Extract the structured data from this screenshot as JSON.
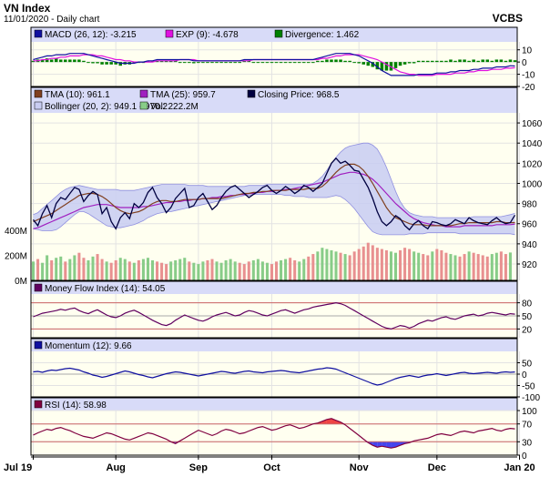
{
  "header": {
    "title": "VN Index",
    "subtitle": "11/01/2020 - Daily chart",
    "source": "VCBS"
  },
  "colors": {
    "panel_bg": "#fffff0",
    "legend_bg": "#d8dbf8",
    "grid": "#e3e3e3",
    "border": "#000000",
    "macd": "#1010a0",
    "exp": "#e010e0",
    "divergence": "#008000",
    "tma10": "#804020",
    "tma25": "#a020c0",
    "close": "#000040",
    "bollinger_fill": "#c8ccf2",
    "bollinger_line": "#9090e0",
    "vol_up": "#88cc88",
    "vol_down": "#e89090",
    "mfi": "#600060",
    "momentum": "#1010a0",
    "rsi": "#800040",
    "ref_line": "#cc6666",
    "rsi_over": "#ee4444",
    "rsi_under": "#4444ee"
  },
  "x_labels": [
    "Jul 19",
    "Aug",
    "Sep",
    "Oct",
    "Nov",
    "Dec",
    "Jan 20"
  ],
  "panels": [
    {
      "id": "macd",
      "legend": [
        {
          "key": "macd",
          "text": "MACD (26, 12): -3.215"
        },
        {
          "key": "exp",
          "text": "EXP (9): -4.678"
        },
        {
          "key": "divergence",
          "text": "Divergence: 1.462"
        }
      ],
      "ticks": [
        10,
        0,
        -10,
        -20
      ],
      "range": [
        -20,
        15
      ]
    },
    {
      "id": "price",
      "legend": [
        {
          "key": "tma10",
          "text": "TMA (10): 961.1"
        },
        {
          "key": "tma25",
          "text": "TMA (25): 959.7"
        },
        {
          "key": "close",
          "text": "Closing Price: 968.5"
        },
        {
          "key": "bollinger",
          "text": "Bollinger (20, 2): 949.1 - 970.2"
        },
        {
          "key": "vol",
          "text": "Vol: 222.2M"
        }
      ],
      "ticks": [
        1060,
        1040,
        1020,
        1000,
        980,
        960,
        940,
        920
      ],
      "range": [
        920,
        1070
      ],
      "vol_ticks": [
        "400M",
        "200M",
        "0M"
      ]
    },
    {
      "id": "mfi",
      "legend": [
        {
          "key": "mfi",
          "text": "Money Flow Index (14): 54.05"
        }
      ],
      "ticks": [
        80,
        50,
        20
      ],
      "range": [
        0,
        100
      ]
    },
    {
      "id": "momentum",
      "legend": [
        {
          "key": "momentum",
          "text": "Momentum (12): 9.66"
        }
      ],
      "ticks": [
        50,
        0,
        -50,
        -100
      ],
      "range": [
        -100,
        100
      ]
    },
    {
      "id": "rsi",
      "legend": [
        {
          "key": "rsi",
          "text": "RSI (14): 58.98"
        }
      ],
      "ticks": [
        100,
        70,
        30,
        0
      ],
      "range": [
        0,
        100
      ]
    }
  ],
  "chart_data": {
    "type": "line",
    "title": "VN Index",
    "subtitle": "11/01/2020 - Daily chart",
    "x": [
      "Jul 19",
      "Aug",
      "Sep",
      "Oct",
      "Nov",
      "Dec",
      "Jan 20"
    ],
    "x_index": [
      0,
      18,
      36,
      52,
      71,
      88,
      106
    ],
    "price": {
      "close": [
        964,
        958,
        970,
        978,
        966,
        980,
        986,
        984,
        990,
        996,
        994,
        982,
        988,
        992,
        989,
        970,
        976,
        962,
        955,
        966,
        971,
        965,
        980,
        976,
        981,
        991,
        996,
        986,
        980,
        971,
        976,
        985,
        990,
        995,
        976,
        978,
        986,
        990,
        982,
        974,
        978,
        986,
        992,
        996,
        998,
        994,
        990,
        986,
        989,
        992,
        996,
        998,
        993,
        990,
        993,
        997,
        994,
        990,
        993,
        998,
        996,
        992,
        996,
        1000,
        1010,
        1020,
        1025,
        1020,
        1022,
        1018,
        1013,
        1012,
        1004,
        996,
        985,
        972,
        962,
        958,
        962,
        968,
        965,
        958,
        954,
        960,
        963,
        958,
        955,
        962,
        961,
        959,
        958,
        960,
        964,
        962,
        960,
        966,
        963,
        961,
        960,
        959,
        963,
        966,
        962,
        960,
        961,
        968.5
      ],
      "tma10": [
        962,
        964,
        966,
        968,
        970,
        973,
        976,
        979,
        982,
        985,
        988,
        989,
        990,
        990,
        989,
        987,
        984,
        980,
        976,
        973,
        971,
        970,
        971,
        972,
        974,
        977,
        980,
        982,
        983,
        983,
        982,
        982,
        983,
        984,
        984,
        984,
        984,
        985,
        985,
        985,
        985,
        985,
        986,
        987,
        988,
        989,
        990,
        990,
        991,
        991,
        992,
        992,
        993,
        993,
        993,
        993,
        994,
        994,
        994,
        994,
        995,
        995,
        995,
        997,
        1001,
        1006,
        1011,
        1015,
        1018,
        1019,
        1019,
        1017,
        1013,
        1007,
        1000,
        992,
        984,
        976,
        970,
        966,
        964,
        962,
        960,
        959,
        959,
        959,
        958,
        958,
        958,
        958,
        958,
        958,
        959,
        960,
        960,
        961,
        961,
        961,
        961,
        961,
        961,
        962,
        962,
        961,
        961,
        961.1
      ],
      "tma25": [
        955,
        956,
        958,
        960,
        962,
        964,
        966,
        968,
        970,
        972,
        974,
        976,
        977,
        978,
        979,
        979,
        979,
        978,
        977,
        976,
        976,
        976,
        976,
        976,
        977,
        977,
        978,
        979,
        980,
        981,
        981,
        982,
        982,
        983,
        983,
        984,
        984,
        985,
        985,
        986,
        986,
        987,
        987,
        988,
        988,
        989,
        989,
        990,
        990,
        991,
        991,
        992,
        992,
        993,
        993,
        994,
        994,
        995,
        996,
        997,
        998,
        999,
        1000,
        1001,
        1003,
        1005,
        1007,
        1009,
        1010,
        1011,
        1011,
        1010,
        1009,
        1007,
        1004,
        1000,
        995,
        990,
        985,
        980,
        976,
        972,
        968,
        965,
        963,
        961,
        960,
        959,
        958,
        958,
        957,
        957,
        957,
        957,
        958,
        958,
        958,
        958,
        958,
        958,
        958,
        959,
        959,
        959,
        959,
        959.7
      ],
      "boll_upper": [
        969,
        971,
        975,
        979,
        983,
        987,
        991,
        994,
        996,
        997,
        998,
        997,
        996,
        995,
        994,
        994,
        994,
        994,
        994,
        993,
        993,
        993,
        993,
        994,
        995,
        996,
        997,
        998,
        999,
        999,
        999,
        999,
        999,
        999,
        998,
        998,
        998,
        998,
        997,
        997,
        997,
        997,
        997,
        997,
        997,
        997,
        997,
        998,
        998,
        998,
        998,
        999,
        999,
        999,
        999,
        999,
        999,
        999,
        999,
        999,
        999,
        1000,
        1003,
        1007,
        1013,
        1020,
        1026,
        1031,
        1035,
        1037,
        1038,
        1039,
        1040,
        1040,
        1038,
        1034,
        1026,
        1016,
        1004,
        992,
        982,
        975,
        971,
        969,
        968,
        967,
        967,
        967,
        966,
        966,
        966,
        966,
        966,
        966,
        966,
        966,
        967,
        967,
        967,
        967,
        967,
        967,
        967,
        968,
        969,
        970.2
      ],
      "boll_lower": [
        955,
        954,
        953,
        953,
        953,
        954,
        957,
        961,
        965,
        969,
        972,
        972,
        970,
        967,
        964,
        961,
        958,
        957,
        956,
        956,
        957,
        958,
        959,
        961,
        963,
        966,
        968,
        970,
        971,
        972,
        972,
        973,
        974,
        975,
        976,
        977,
        978,
        979,
        980,
        981,
        982,
        983,
        984,
        985,
        986,
        987,
        988,
        988,
        989,
        989,
        989,
        989,
        989,
        989,
        989,
        988,
        988,
        987,
        987,
        987,
        986,
        986,
        986,
        986,
        986,
        987,
        988,
        987,
        984,
        980,
        975,
        969,
        963,
        957,
        952,
        950,
        949,
        949,
        949,
        949,
        949,
        949,
        950,
        950,
        950,
        950,
        951,
        951,
        951,
        951,
        951,
        951,
        951,
        950,
        950,
        950,
        950,
        950,
        950,
        950,
        950,
        950,
        950,
        950,
        950,
        949.1
      ],
      "volume_m": [
        150,
        170,
        140,
        200,
        160,
        180,
        190,
        150,
        170,
        200,
        220,
        180,
        160,
        190,
        210,
        170,
        150,
        140,
        160,
        180,
        170,
        150,
        140,
        160,
        170,
        180,
        160,
        150,
        140,
        130,
        150,
        160,
        170,
        180,
        150,
        140,
        130,
        150,
        160,
        170,
        150,
        140,
        160,
        170,
        150,
        140,
        130,
        150,
        160,
        170,
        150,
        140,
        130,
        150,
        160,
        170,
        180,
        160,
        150,
        170,
        190,
        210,
        230,
        260,
        250,
        240,
        230,
        220,
        210,
        200,
        230,
        250,
        270,
        300,
        280,
        260,
        250,
        240,
        230,
        220,
        240,
        260,
        250,
        230,
        220,
        210,
        200,
        230,
        250,
        240,
        220,
        210,
        200,
        190,
        210,
        230,
        220,
        210,
        200,
        190,
        210,
        220,
        230,
        210,
        222.2
      ]
    },
    "macd": [
      2,
      3,
      4,
      5,
      5,
      6,
      6,
      6,
      7,
      7,
      7,
      7,
      6,
      5,
      4,
      3,
      2,
      1,
      0,
      -1,
      -1,
      -1,
      -1,
      0,
      0,
      1,
      1,
      2,
      2,
      2,
      2,
      2,
      2,
      2,
      2,
      1,
      1,
      1,
      1,
      1,
      1,
      1,
      1,
      1,
      1,
      1,
      2,
      2,
      2,
      2,
      2,
      2,
      2,
      2,
      2,
      2,
      2,
      2,
      2,
      2,
      2,
      2,
      3,
      4,
      5,
      6,
      7,
      7,
      7,
      7,
      6,
      5,
      3,
      1,
      -1,
      -4,
      -7,
      -9,
      -11,
      -11,
      -11,
      -11,
      -11,
      -11,
      -10,
      -10,
      -10,
      -10,
      -9,
      -9,
      -9,
      -8,
      -8,
      -7,
      -7,
      -7,
      -6,
      -6,
      -5,
      -5,
      -5,
      -4,
      -4,
      -4,
      -3,
      -3.215
    ],
    "exp": [
      1,
      1,
      2,
      2,
      3,
      3,
      4,
      4,
      5,
      5,
      5,
      6,
      6,
      6,
      5,
      5,
      4,
      3,
      2,
      2,
      1,
      1,
      0,
      0,
      0,
      0,
      0,
      1,
      1,
      1,
      1,
      1,
      2,
      2,
      2,
      2,
      1,
      1,
      1,
      1,
      1,
      1,
      1,
      1,
      1,
      1,
      1,
      1,
      2,
      2,
      2,
      2,
      2,
      2,
      2,
      2,
      2,
      2,
      2,
      2,
      2,
      2,
      2,
      3,
      3,
      4,
      5,
      5,
      6,
      6,
      6,
      6,
      5,
      4,
      3,
      2,
      0,
      -2,
      -4,
      -6,
      -8,
      -9,
      -10,
      -10,
      -11,
      -11,
      -11,
      -11,
      -10,
      -10,
      -10,
      -10,
      -9,
      -9,
      -9,
      -8,
      -8,
      -7,
      -7,
      -7,
      -6,
      -6,
      -6,
      -5,
      -5,
      -4.678
    ],
    "divergence": [
      1,
      2,
      2,
      3,
      2,
      3,
      2,
      2,
      2,
      2,
      2,
      1,
      0,
      -1,
      -1,
      -2,
      -2,
      -2,
      -2,
      -3,
      -2,
      -2,
      -1,
      0,
      0,
      1,
      1,
      1,
      1,
      1,
      1,
      1,
      0,
      0,
      0,
      -1,
      0,
      0,
      0,
      0,
      0,
      0,
      0,
      0,
      0,
      0,
      1,
      1,
      0,
      0,
      0,
      0,
      0,
      0,
      0,
      0,
      0,
      0,
      0,
      0,
      0,
      0,
      1,
      1,
      2,
      2,
      2,
      2,
      1,
      1,
      0,
      -1,
      -2,
      -3,
      -4,
      -6,
      -7,
      -7,
      -7,
      -5,
      -3,
      -2,
      -1,
      -1,
      1,
      1,
      1,
      1,
      1,
      1,
      1,
      2,
      1,
      2,
      2,
      1,
      2,
      1,
      2,
      2,
      1,
      2,
      2,
      1,
      2,
      1.462
    ],
    "mfi": [
      48,
      52,
      56,
      58,
      60,
      62,
      65,
      63,
      66,
      68,
      62,
      58,
      55,
      60,
      64,
      58,
      52,
      48,
      46,
      50,
      56,
      60,
      63,
      58,
      52,
      46,
      40,
      35,
      30,
      28,
      32,
      40,
      46,
      52,
      48,
      44,
      40,
      38,
      42,
      48,
      52,
      55,
      58,
      54,
      50,
      52,
      58,
      62,
      60,
      56,
      52,
      50,
      54,
      58,
      62,
      64,
      60,
      56,
      60,
      64,
      66,
      70,
      72,
      74,
      76,
      78,
      80,
      78,
      74,
      68,
      62,
      56,
      50,
      44,
      38,
      32,
      26,
      22,
      20,
      24,
      28,
      26,
      22,
      26,
      32,
      36,
      40,
      38,
      42,
      46,
      48,
      44,
      42,
      46,
      50,
      52,
      54,
      50,
      52,
      56,
      58,
      56,
      54,
      52,
      55,
      54.05
    ],
    "momentum": [
      10,
      12,
      8,
      14,
      18,
      16,
      20,
      24,
      26,
      22,
      18,
      10,
      4,
      -4,
      -8,
      -14,
      -10,
      -4,
      2,
      8,
      14,
      10,
      4,
      -2,
      -6,
      -12,
      -16,
      -10,
      -4,
      2,
      6,
      10,
      8,
      4,
      0,
      -4,
      -8,
      -4,
      0,
      4,
      8,
      12,
      10,
      6,
      4,
      8,
      12,
      14,
      10,
      8,
      6,
      10,
      12,
      14,
      16,
      14,
      10,
      8,
      6,
      10,
      14,
      18,
      22,
      24,
      28,
      26,
      22,
      14,
      6,
      -2,
      -10,
      -18,
      -26,
      -34,
      -42,
      -48,
      -44,
      -36,
      -28,
      -20,
      -14,
      -10,
      -6,
      -10,
      -14,
      -8,
      -4,
      -2,
      2,
      -2,
      -6,
      -2,
      2,
      6,
      8,
      4,
      2,
      4,
      6,
      8,
      6,
      4,
      8,
      10,
      8,
      9.66
    ],
    "rsi": [
      45,
      50,
      54,
      58,
      56,
      60,
      62,
      58,
      55,
      50,
      46,
      42,
      40,
      38,
      42,
      46,
      50,
      48,
      44,
      40,
      36,
      34,
      38,
      42,
      46,
      50,
      48,
      44,
      40,
      36,
      30,
      26,
      32,
      38,
      44,
      50,
      56,
      52,
      48,
      44,
      48,
      54,
      58,
      56,
      52,
      48,
      50,
      54,
      58,
      62,
      64,
      60,
      56,
      58,
      62,
      66,
      68,
      64,
      60,
      62,
      66,
      70,
      72,
      76,
      80,
      82,
      78,
      74,
      68,
      60,
      52,
      44,
      36,
      28,
      22,
      18,
      20,
      18,
      16,
      18,
      22,
      26,
      28,
      32,
      34,
      36,
      38,
      42,
      46,
      48,
      46,
      44,
      48,
      52,
      54,
      52,
      50,
      54,
      56,
      58,
      60,
      56,
      54,
      58,
      60,
      58.98
    ]
  }
}
